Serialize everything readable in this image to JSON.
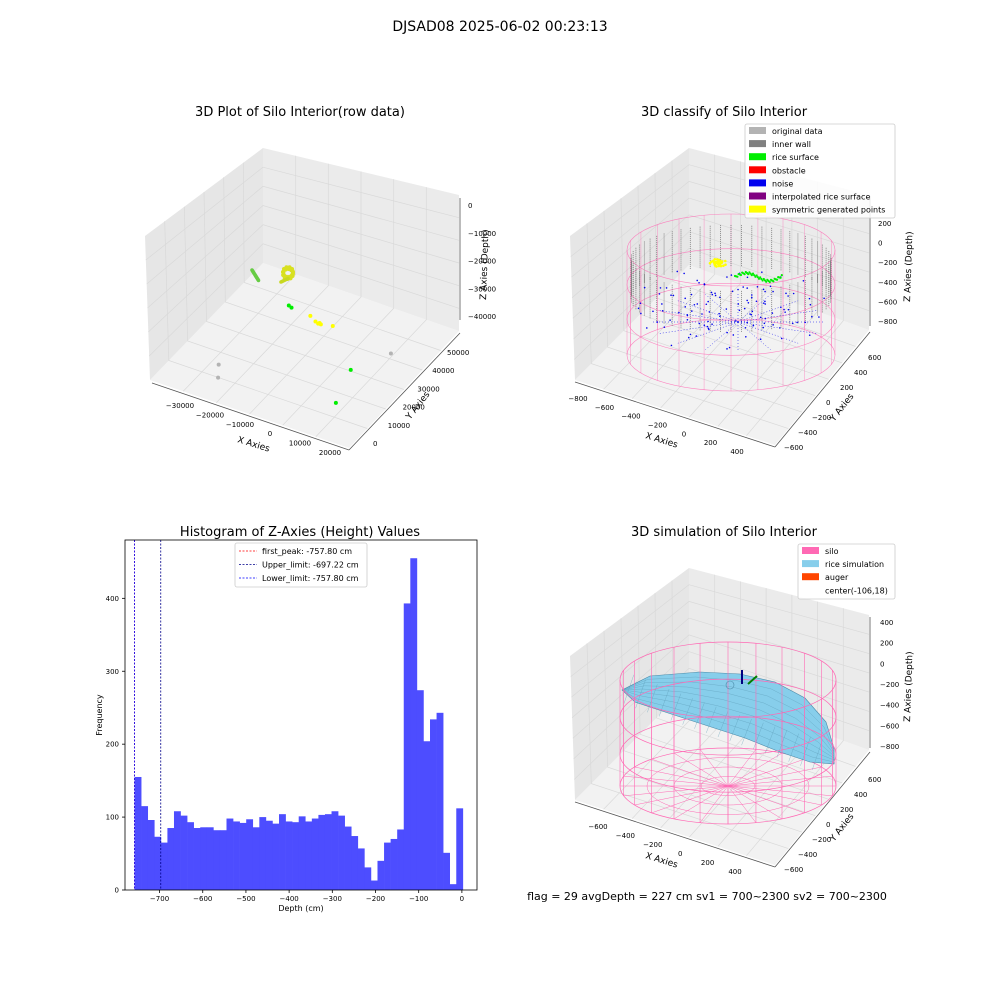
{
  "suptitle": "DJSAD08 2025-06-02 00:23:13",
  "status_line": "flag = 29  avgDepth = 227 cm  sv1 = 700~2300  sv2 = 700~2300",
  "colors": {
    "original": "#b3b3b3",
    "wall": "#808080",
    "rice": "#00ee00",
    "obstacle": "#ff0000",
    "noise": "#0000ee",
    "interp": "#800080",
    "sym": "#ffff00",
    "silo": "#ff69b4",
    "rice_sim": "#87ceeb",
    "auger": "#ff4500",
    "hist_bar": "#4d4dff",
    "peak_line": "#ff0000",
    "limit_line": "#00008b",
    "lower_line": "#0000ff",
    "pane": "#f2f2f2",
    "pane_side": "#ebebeb",
    "grid": "#d9d9d9"
  },
  "chart_data": [
    {
      "id": "raw",
      "type": "scatter",
      "title": "3D Plot of Silo Interior(row data)",
      "xlabel": "X Axies",
      "ylabel": "Y Axies",
      "zlabel": "Z Axies (Depth)",
      "x_ticks": [
        "−30000",
        "−20000",
        "−10000",
        "0",
        "10000",
        "20000"
      ],
      "y_ticks": [
        "0",
        "10000",
        "20000",
        "30000",
        "40000",
        "50000"
      ],
      "z_ticks": [
        "0",
        "−10000",
        "−20000",
        "−30000",
        "−40000"
      ],
      "points": [
        {
          "x": -12000,
          "y": 30000,
          "z": -22000,
          "c": "rice"
        },
        {
          "x": -11500,
          "y": 30500,
          "z": -23000,
          "c": "rice"
        },
        {
          "x": -3000,
          "y": 28000,
          "z": -22500,
          "c": "sym"
        },
        {
          "x": -2500,
          "y": 28500,
          "z": -23500,
          "c": "sym"
        },
        {
          "x": -2000,
          "y": 29000,
          "z": -24000,
          "c": "sym"
        },
        {
          "x": -1500,
          "y": 27500,
          "z": -22000,
          "c": "sym"
        },
        {
          "x": 1500,
          "y": 29000,
          "z": -23000,
          "c": "sym"
        },
        {
          "x": -4500,
          "y": 28000,
          "z": -21000,
          "c": "sym"
        },
        {
          "x": 12000,
          "y": 20000,
          "z": -28000,
          "c": "rice"
        },
        {
          "x": 14000,
          "y": 9000,
          "z": -31000,
          "c": "rice"
        },
        {
          "x": -22000,
          "y": 12000,
          "z": -35000,
          "c": "original"
        },
        {
          "x": -21000,
          "y": 10000,
          "z": -38000,
          "c": "original"
        },
        {
          "x": 18000,
          "y": 30000,
          "z": -27000,
          "c": "original"
        }
      ]
    },
    {
      "id": "classify",
      "type": "scatter",
      "title": "3D classify of Silo Interior",
      "xlabel": "X Axies",
      "ylabel": "Y Axies",
      "zlabel": "Z Axies (Depth)",
      "x_ticks": [
        "−800",
        "−600",
        "−400",
        "−200",
        "0",
        "200",
        "400"
      ],
      "y_ticks": [
        "−600",
        "−400",
        "−200",
        "0",
        "200",
        "400",
        "600"
      ],
      "z_ticks": [
        "200",
        "0",
        "−200",
        "−400",
        "−600",
        "−800"
      ],
      "legend": [
        {
          "label": "original data",
          "c": "original"
        },
        {
          "label": "inner wall",
          "c": "wall"
        },
        {
          "label": "rice surface",
          "c": "rice"
        },
        {
          "label": "obstacle",
          "c": "obstacle"
        },
        {
          "label": "noise",
          "c": "noise"
        },
        {
          "label": "interpolated rice surface",
          "c": "interp"
        },
        {
          "label": "symmetric generated points",
          "c": "sym"
        }
      ],
      "silo": {
        "center_x": -106,
        "center_y": 18,
        "radius": 540,
        "z_top": 0,
        "z_bottom": -900
      }
    },
    {
      "id": "hist",
      "type": "bar",
      "title": "Histogram of Z-Axies (Height) Values",
      "xlabel": "Depth (cm)",
      "ylabel": "Frequency",
      "xlim": [
        -780,
        35
      ],
      "ylim": [
        0,
        480
      ],
      "x_ticks": [
        "−700",
        "−600",
        "−500",
        "−400",
        "−300",
        "−200",
        "−100",
        "0"
      ],
      "x_tick_values": [
        -700,
        -600,
        -500,
        -400,
        -300,
        -200,
        -100,
        0
      ],
      "y_ticks": [
        "0",
        "100",
        "200",
        "300",
        "400"
      ],
      "y_tick_values": [
        0,
        100,
        200,
        300,
        400
      ],
      "bin_start": -757.8,
      "bin_width": 15.2,
      "values": [
        155,
        115,
        96,
        73,
        65,
        85,
        108,
        102,
        93,
        85,
        86,
        86,
        82,
        82,
        98,
        94,
        92,
        97,
        86,
        100,
        95,
        91,
        104,
        94,
        93,
        101,
        94,
        98,
        103,
        104,
        108,
        102,
        87,
        74,
        57,
        31,
        13,
        40,
        65,
        70,
        83,
        393,
        455,
        274,
        204,
        234,
        243,
        51,
        8,
        112
      ],
      "vlines": [
        {
          "label": "first_peak: -757.80 cm",
          "x": -757.8,
          "c": "peak_line"
        },
        {
          "label": "Upper_limit: -697.22 cm",
          "x": -697.22,
          "c": "limit_line"
        },
        {
          "label": "Lower_limit: -757.80 cm",
          "x": -757.8,
          "c": "lower_line"
        }
      ]
    },
    {
      "id": "sim",
      "type": "surface",
      "title": "3D simulation of Silo Interior",
      "xlabel": "X Axies",
      "ylabel": "Y Axies",
      "zlabel": "Z Axies (Depth)",
      "x_ticks": [
        "−600",
        "−400",
        "−200",
        "0",
        "200",
        "400"
      ],
      "y_ticks": [
        "−600",
        "−400",
        "−200",
        "0",
        "200",
        "400",
        "600"
      ],
      "z_ticks": [
        "400",
        "200",
        "0",
        "−200",
        "−400",
        "−600",
        "−800"
      ],
      "legend": [
        {
          "label": "silo",
          "c": "silo"
        },
        {
          "label": "rice simulation",
          "c": "rice_sim"
        },
        {
          "label": "auger",
          "c": "auger"
        },
        {
          "label": "center(-106,18)",
          "c": ""
        }
      ]
    }
  ]
}
